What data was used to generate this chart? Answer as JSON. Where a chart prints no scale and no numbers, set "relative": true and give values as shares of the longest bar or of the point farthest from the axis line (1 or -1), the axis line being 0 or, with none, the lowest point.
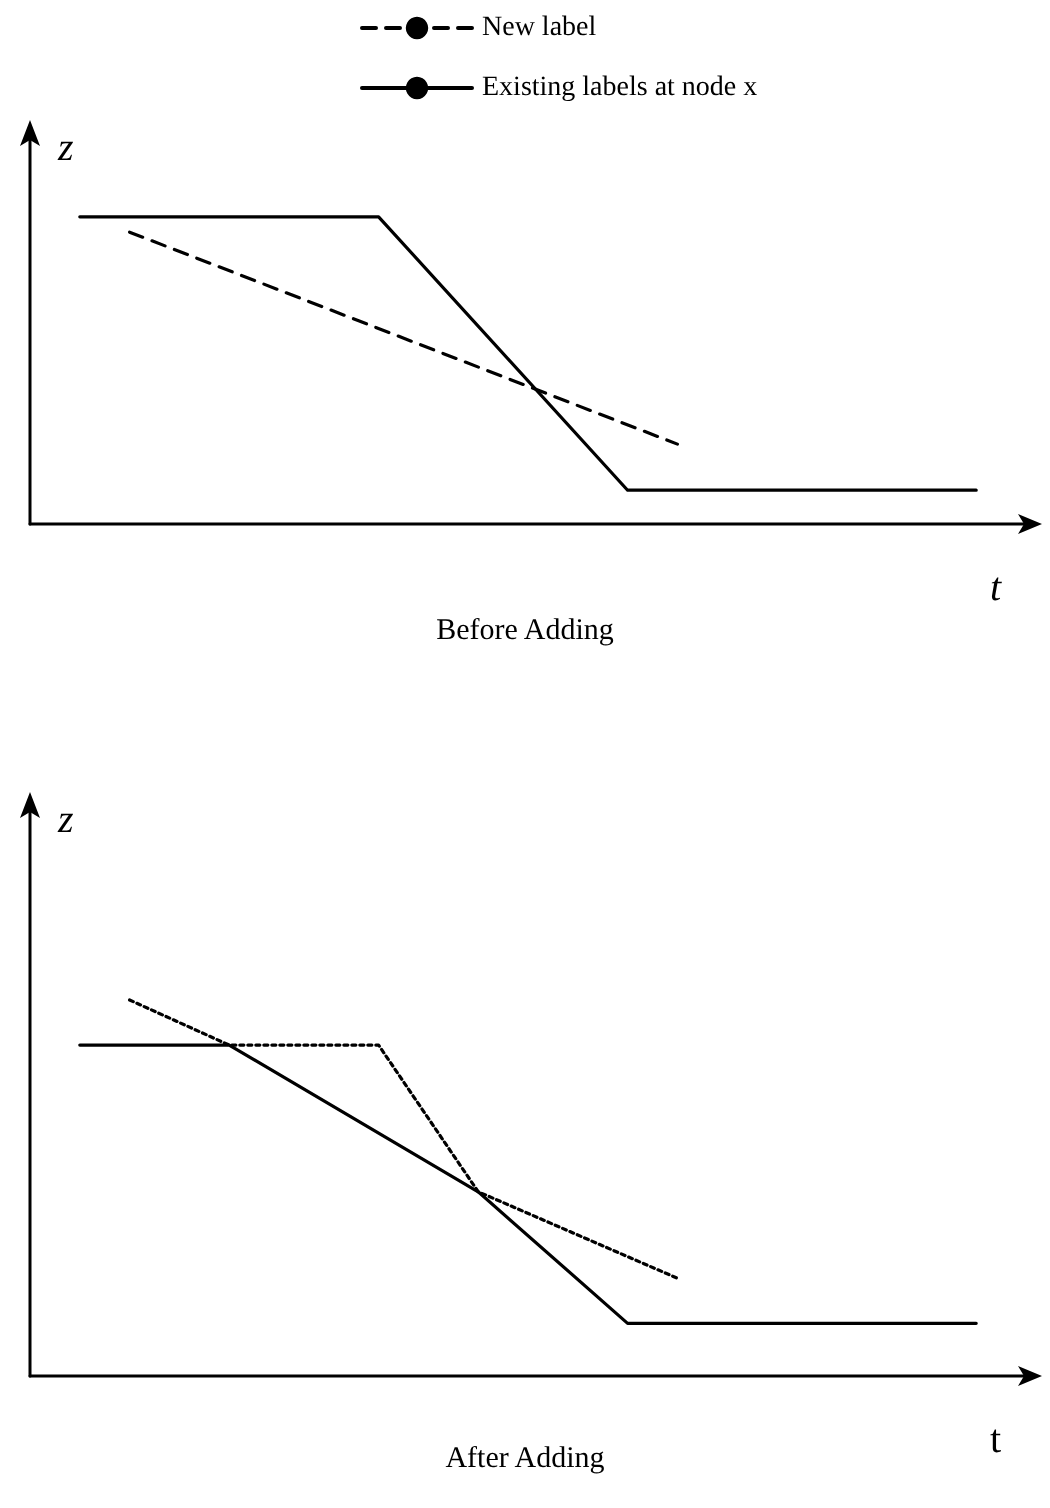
{
  "chart_data": [
    {
      "type": "line",
      "title": "Before Adding",
      "xlabel": "t",
      "ylabel": "z",
      "relative": true,
      "legend": "top",
      "marker": "none",
      "categories": [
        null,
        null,
        null,
        null,
        null,
        null,
        null,
        null,
        null,
        null,
        null,
        null,
        null,
        null,
        null,
        null,
        null,
        null,
        null,
        null,
        null
      ],
      "series": [
        {
          "name": "New label",
          "color": "#000000",
          "line_style": "dashed",
          "values": [
            null,
            null,
            0.95,
            null,
            null,
            null,
            null,
            null,
            null,
            null,
            null,
            null,
            null,
            0.26,
            null,
            null,
            null,
            null,
            null,
            null,
            null
          ]
        },
        {
          "name": "Existing labels at node x",
          "color": "#000000",
          "line_style": "solid",
          "values": [
            null,
            1,
            null,
            null,
            null,
            null,
            null,
            1,
            null,
            null,
            null,
            null,
            0.11,
            null,
            null,
            null,
            null,
            null,
            null,
            0.11,
            null
          ]
        }
      ]
    },
    {
      "type": "line",
      "title": "After Adding",
      "xlabel": "t",
      "ylabel": "z",
      "relative": true,
      "marker": "none",
      "categories": [
        null,
        null,
        null,
        null,
        null,
        null,
        null,
        null,
        null,
        null,
        null,
        null,
        null,
        null,
        null,
        null,
        null,
        null,
        null,
        null,
        null
      ],
      "series": [
        {
          "color": "#000000",
          "line_style": "dotted",
          "values": [
            null,
            null,
            1,
            null,
            0.88,
            null,
            null,
            0.88,
            null,
            0.49,
            null,
            null,
            null,
            0.26,
            null,
            null,
            null,
            null,
            null,
            null,
            null
          ]
        },
        {
          "color": "#000000",
          "line_style": "solid",
          "values": [
            null,
            0.88,
            null,
            null,
            0.88,
            null,
            null,
            null,
            null,
            0.49,
            null,
            null,
            0.14,
            null,
            null,
            null,
            null,
            null,
            null,
            0.14,
            null
          ]
        }
      ]
    }
  ]
}
